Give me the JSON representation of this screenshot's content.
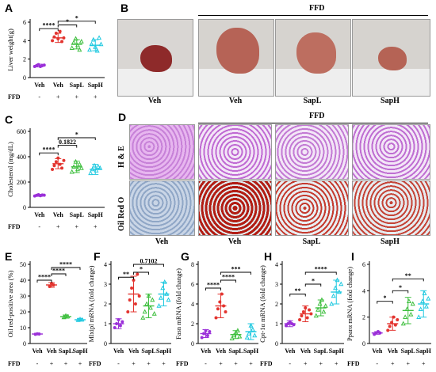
{
  "panels": {
    "A": {
      "letter": "A"
    },
    "B": {
      "letter": "B"
    },
    "C": {
      "letter": "C"
    },
    "D": {
      "letter": "D"
    },
    "E": {
      "letter": "E"
    },
    "F": {
      "letter": "F"
    },
    "G": {
      "letter": "G"
    },
    "H": {
      "letter": "H"
    },
    "I": {
      "letter": "I"
    }
  },
  "ffd_label": "FFD",
  "ffd_row_label": "FFD",
  "ffd_signs": [
    "-",
    "+",
    "+",
    "+"
  ],
  "group_labels": [
    "Veh",
    "Veh",
    "SapL",
    "SapH"
  ],
  "panel_B": {
    "captions": [
      "Veh",
      "Veh",
      "SapL",
      "SapH"
    ],
    "header": "FFD"
  },
  "panel_D": {
    "header": "FFD",
    "rows": [
      "H & E",
      "Oil Red O"
    ],
    "captions": [
      "Veh",
      "Veh",
      "SapL",
      "SapH"
    ]
  },
  "colors": {
    "veh_control": "#9b30d9",
    "veh_ffd": "#e3342f",
    "sapl": "#3fbf3f",
    "saph": "#20c9e0"
  },
  "chart_data": [
    {
      "id": "A",
      "type": "scatter",
      "ylabel": "Liver weight(g)",
      "ylim": [
        0,
        6
      ],
      "yticks": [
        0,
        2,
        4,
        6
      ],
      "categories": [
        "Veh",
        "Veh",
        "SapL",
        "SapH"
      ],
      "means": [
        1.3,
        4.3,
        3.6,
        3.5
      ],
      "sd": [
        0.15,
        0.5,
        0.5,
        0.6
      ],
      "points": [
        [
          1.2,
          1.3,
          1.4,
          1.2,
          1.3,
          1.35
        ],
        [
          4.0,
          4.4,
          4.8,
          4.2,
          5.0,
          3.9,
          4.3
        ],
        [
          3.2,
          3.8,
          4.2,
          3.5,
          3.0,
          3.9
        ],
        [
          3.0,
          3.6,
          4.1,
          3.3,
          2.9,
          4.3,
          3.6
        ]
      ],
      "brackets": [
        {
          "from": 0,
          "to": 1,
          "label": "****",
          "y": 5.3
        },
        {
          "from": 1,
          "to": 2,
          "label": "*",
          "y": 5.7
        },
        {
          "from": 1,
          "to": 3,
          "label": "*",
          "y": 6.1
        }
      ]
    },
    {
      "id": "C",
      "type": "scatter",
      "ylabel": "Cholesterol (mg/dL)",
      "ylim": [
        0,
        600
      ],
      "yticks": [
        0,
        200,
        400,
        600
      ],
      "categories": [
        "Veh",
        "Veh",
        "SapL",
        "SapH"
      ],
      "means": [
        95,
        345,
        320,
        300
      ],
      "sd": [
        8,
        40,
        45,
        40
      ],
      "points": [
        [
          90,
          95,
          100,
          92,
          98,
          96
        ],
        [
          300,
          330,
          360,
          390,
          340,
          310,
          370
        ],
        [
          280,
          320,
          360,
          300,
          340,
          310
        ],
        [
          270,
          300,
          330,
          290,
          320,
          310
        ]
      ],
      "brackets": [
        {
          "from": 0,
          "to": 1,
          "label": "****",
          "y": 430
        },
        {
          "from": 1,
          "to": 2,
          "label": "0.1822",
          "y": 490
        },
        {
          "from": 1,
          "to": 3,
          "label": "*",
          "y": 550
        }
      ]
    },
    {
      "id": "E",
      "type": "scatter",
      "ylabel": "Oil red-positive area (%)",
      "ylim": [
        0,
        50
      ],
      "yticks": [
        0,
        10,
        20,
        30,
        40,
        50
      ],
      "categories": [
        "Veh",
        "Veh",
        "SapL",
        "SapH"
      ],
      "means": [
        6,
        37,
        17,
        15
      ],
      "sd": [
        0.5,
        1.5,
        1.0,
        0.8
      ],
      "points": [
        [
          5.8,
          6.1,
          6.0
        ],
        [
          36,
          38,
          37
        ],
        [
          16.5,
          17.5,
          17
        ],
        [
          14.8,
          15.3,
          15
        ]
      ],
      "brackets": [
        {
          "from": 0,
          "to": 1,
          "label": "****",
          "y": 40
        },
        {
          "from": 1,
          "to": 2,
          "label": "****",
          "y": 44
        },
        {
          "from": 1,
          "to": 3,
          "label": "****",
          "y": 48
        }
      ]
    },
    {
      "id": "F",
      "type": "scatter",
      "ylabel": "Mlxipl mRNA (fold change)",
      "ylim": [
        0,
        4
      ],
      "yticks": [
        0,
        1,
        2,
        3,
        4
      ],
      "categories": [
        "Veh",
        "Veh",
        "SapL",
        "SapH"
      ],
      "means": [
        1.0,
        2.5,
        1.9,
        2.5
      ],
      "sd": [
        0.25,
        0.9,
        0.6,
        0.6
      ],
      "points": [
        [
          0.8,
          1.0,
          1.2,
          0.9,
          1.1
        ],
        [
          1.6,
          2.2,
          2.8,
          3.2,
          2.0,
          3.5,
          2.4
        ],
        [
          1.3,
          1.6,
          2.0,
          2.4,
          1.8,
          2.2,
          1.5
        ],
        [
          1.9,
          2.3,
          2.8,
          3.1,
          2.5,
          2.2
        ]
      ],
      "brackets": [
        {
          "from": 0,
          "to": 1,
          "label": "**",
          "y": 3.35
        },
        {
          "from": 1,
          "to": 2,
          "label": "*",
          "y": 3.6
        },
        {
          "from": 1,
          "to": 3,
          "label": "0.7102",
          "y": 4.0
        }
      ]
    },
    {
      "id": "G",
      "type": "scatter",
      "ylabel": "Fasn mRNA (fold change)",
      "ylim": [
        0,
        8
      ],
      "yticks": [
        0,
        2,
        4,
        6,
        8
      ],
      "categories": [
        "Veh",
        "Veh",
        "SapL",
        "SapH"
      ],
      "means": [
        1.0,
        3.8,
        0.9,
        1.2
      ],
      "sd": [
        0.4,
        1.2,
        0.4,
        0.8
      ],
      "points": [
        [
          0.6,
          1.0,
          1.3,
          0.8,
          1.2
        ],
        [
          2.6,
          3.5,
          4.2,
          5.0,
          3.8,
          3.2
        ],
        [
          0.5,
          0.8,
          1.1,
          1.3,
          0.7
        ],
        [
          0.6,
          1.0,
          1.8,
          1.4,
          0.8
        ]
      ],
      "brackets": [
        {
          "from": 0,
          "to": 1,
          "label": "****",
          "y": 5.6
        },
        {
          "from": 1,
          "to": 2,
          "label": "****",
          "y": 6.4
        },
        {
          "from": 1,
          "to": 3,
          "label": "***",
          "y": 7.2
        }
      ]
    },
    {
      "id": "H",
      "type": "scatter",
      "ylabel": "Cpt-1α mRNA (fold change)",
      "ylim": [
        0,
        4
      ],
      "yticks": [
        0,
        1,
        2,
        3,
        4
      ],
      "categories": [
        "Veh",
        "Veh",
        "SapL",
        "SapH"
      ],
      "means": [
        1.0,
        1.5,
        1.8,
        2.6
      ],
      "sd": [
        0.15,
        0.4,
        0.4,
        0.6
      ],
      "points": [
        [
          0.9,
          1.0,
          1.1,
          1.0,
          0.95
        ],
        [
          1.2,
          1.4,
          1.6,
          1.8,
          1.3,
          1.7,
          1.5
        ],
        [
          1.4,
          1.7,
          2.0,
          2.2,
          1.6,
          1.9
        ],
        [
          2.0,
          2.4,
          2.8,
          3.2,
          2.6,
          3.0
        ]
      ],
      "brackets": [
        {
          "from": 0,
          "to": 1,
          "label": "**",
          "y": 2.5
        },
        {
          "from": 1,
          "to": 2,
          "label": "*",
          "y": 3.0
        },
        {
          "from": 1,
          "to": 3,
          "label": "****",
          "y": 3.6
        }
      ]
    },
    {
      "id": "I",
      "type": "scatter",
      "ylabel": "Pparα mRNA (fold change)",
      "ylim": [
        0,
        6
      ],
      "yticks": [
        0,
        2,
        4,
        6
      ],
      "categories": [
        "Veh",
        "Veh",
        "SapL",
        "SapH"
      ],
      "means": [
        0.8,
        1.5,
        2.5,
        3.0
      ],
      "sd": [
        0.1,
        0.5,
        1.0,
        1.0
      ],
      "points": [
        [
          0.7,
          0.8,
          0.9,
          0.8
        ],
        [
          1.0,
          1.3,
          1.6,
          2.0,
          1.4,
          1.8
        ],
        [
          1.5,
          2.0,
          2.6,
          3.2,
          2.2,
          3.0
        ],
        [
          2.0,
          2.6,
          3.2,
          3.8,
          2.8,
          3.4
        ]
      ],
      "brackets": [
        {
          "from": 0,
          "to": 1,
          "label": "*",
          "y": 3.2
        },
        {
          "from": 1,
          "to": 2,
          "label": "*",
          "y": 4.0
        },
        {
          "from": 1,
          "to": 3,
          "label": "**",
          "y": 4.9
        }
      ]
    }
  ]
}
